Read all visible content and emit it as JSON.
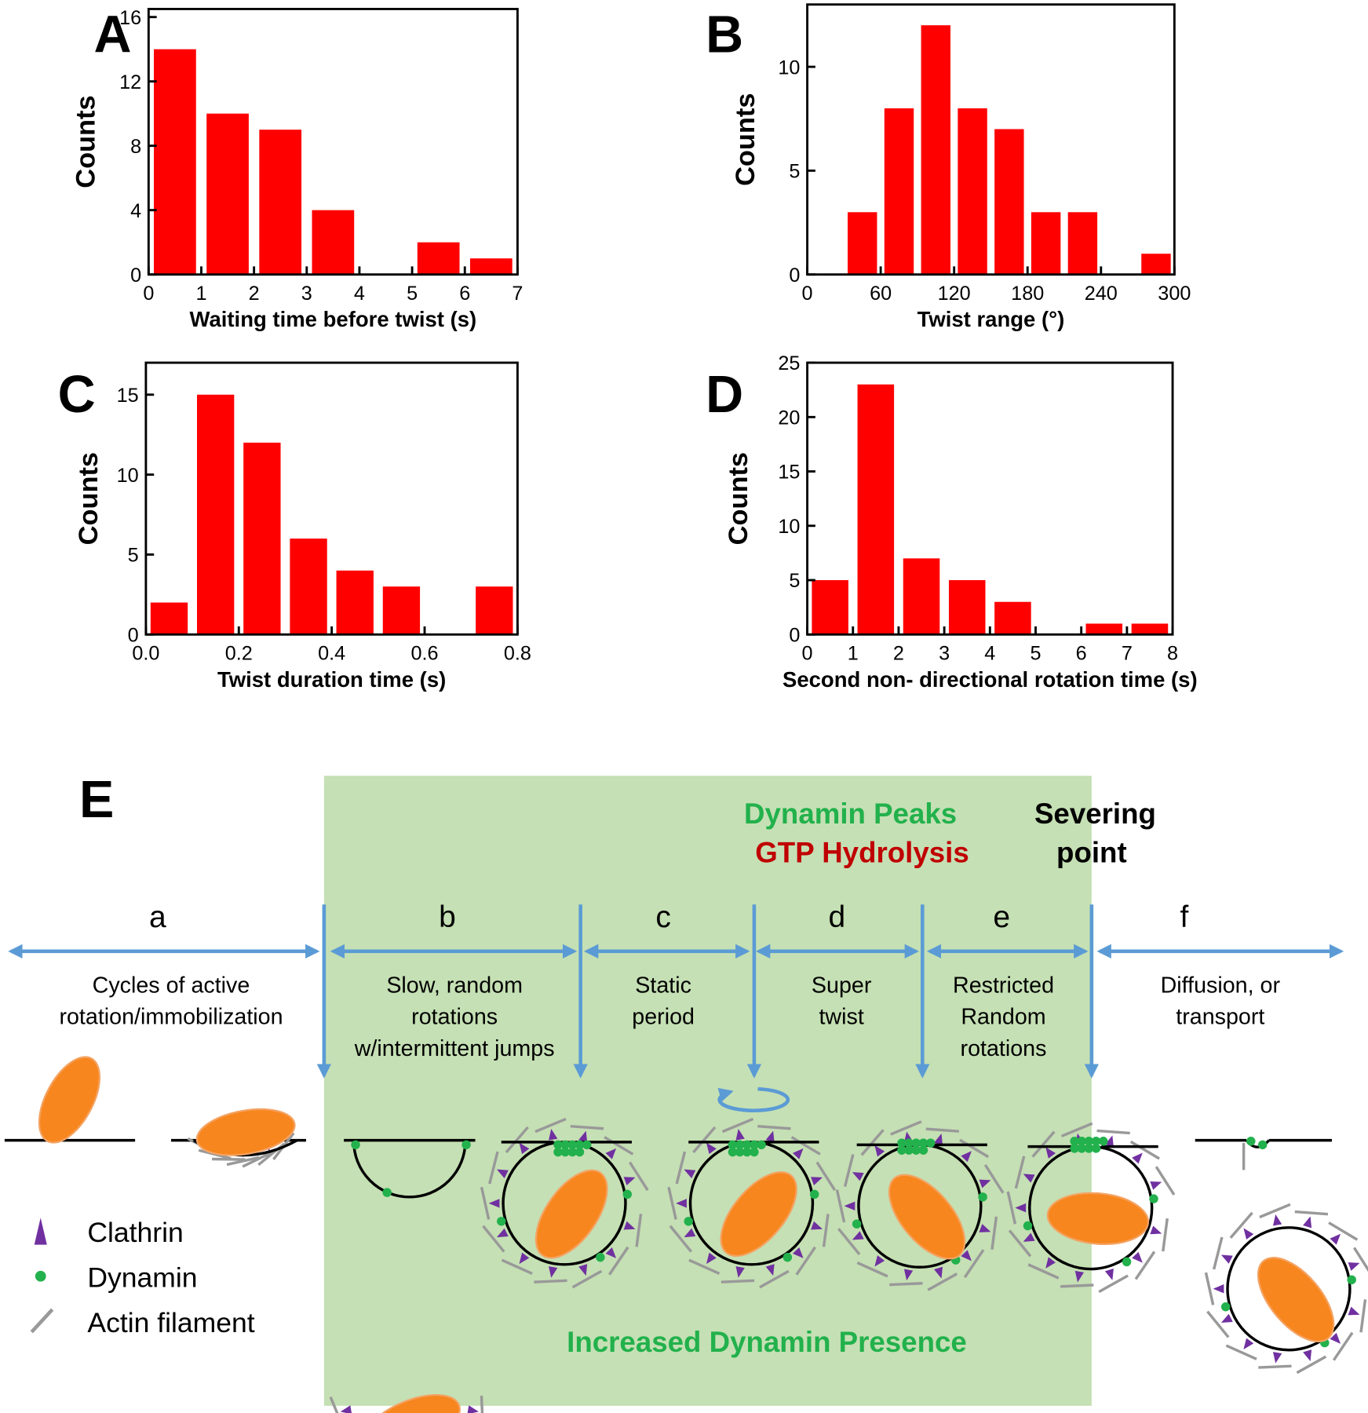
{
  "chart_data": [
    {
      "type": "histogram",
      "panel": "A",
      "xlabel": "Waiting time before twist (s)",
      "ylabel": "Counts",
      "bins": [
        0,
        1,
        2,
        3,
        4,
        5,
        6,
        7
      ],
      "counts": [
        14,
        10,
        9,
        4,
        0,
        2,
        1
      ],
      "color": "#ff0000",
      "xlim": [
        0,
        7
      ],
      "ylim": [
        0,
        16.5
      ],
      "xticks": [
        0,
        1,
        2,
        3,
        4,
        5,
        6,
        7
      ],
      "yticks": [
        0,
        4,
        8,
        12,
        16
      ]
    },
    {
      "type": "histogram",
      "panel": "B",
      "xlabel": "Twist range (°)",
      "ylabel": "Counts",
      "bins": [
        30,
        60,
        90,
        120,
        150,
        180,
        210,
        240,
        270,
        300
      ],
      "counts": [
        3,
        8,
        12,
        8,
        7,
        3,
        3,
        0,
        1
      ],
      "color": "#ff0000",
      "xlim": [
        0,
        300
      ],
      "ylim": [
        0,
        13
      ],
      "xticks": [
        0,
        60,
        120,
        180,
        240,
        300
      ],
      "yticks": [
        0,
        5,
        10
      ]
    },
    {
      "type": "histogram",
      "panel": "C",
      "xlabel": "Twist duration time (s)",
      "ylabel": "Counts",
      "bins": [
        0,
        0.1,
        0.2,
        0.3,
        0.4,
        0.5,
        0.6,
        0.7,
        0.8
      ],
      "counts": [
        2,
        15,
        12,
        6,
        4,
        3,
        0,
        3
      ],
      "color": "#ff0000",
      "xlim": [
        0,
        0.8
      ],
      "ylim": [
        0,
        17
      ],
      "xticks": [
        {
          "value": 0,
          "label": "0.0"
        },
        0.2,
        0.4,
        0.6,
        0.8
      ],
      "yticks": [
        0,
        5,
        10,
        15
      ]
    },
    {
      "type": "histogram",
      "panel": "D",
      "xlabel": "Second non- directional rotation time (s)",
      "ylabel": "Counts",
      "bins": [
        0,
        1,
        2,
        3,
        4,
        5,
        6,
        7,
        8
      ],
      "counts": [
        5,
        23,
        7,
        5,
        3,
        0,
        1,
        1
      ],
      "color": "#ff0000",
      "xlim": [
        0,
        8
      ],
      "ylim": [
        0,
        25
      ],
      "xticks": [
        0,
        1,
        2,
        3,
        4,
        5,
        6,
        7,
        8
      ],
      "yticks": [
        0,
        5,
        10,
        15,
        20,
        25
      ]
    }
  ],
  "diagram": {
    "panel": "E",
    "peak_label": "Dynamin Peaks",
    "hydrolysis_label": "GTP Hydrolysis",
    "severing_label": [
      "Severing",
      "point"
    ],
    "region_label": "Increased Dynamin Presence",
    "stages": [
      {
        "label": "a",
        "description": [
          "Cycles of active",
          "rotation/immobilization"
        ]
      },
      {
        "label": "b",
        "description": [
          "Slow, random",
          "rotations",
          "w/intermittent jumps"
        ]
      },
      {
        "label": "c",
        "description": [
          "Static",
          "period"
        ]
      },
      {
        "label": "d",
        "description": [
          "Super",
          "twist"
        ]
      },
      {
        "label": "e",
        "description": [
          "Restricted",
          "Random",
          "rotations"
        ]
      },
      {
        "label": "f",
        "description": [
          "Diffusion, or",
          "transport"
        ]
      }
    ],
    "legend": [
      {
        "label": "Clathrin"
      },
      {
        "label": "Dynamin"
      },
      {
        "label": "Actin filament"
      }
    ]
  }
}
